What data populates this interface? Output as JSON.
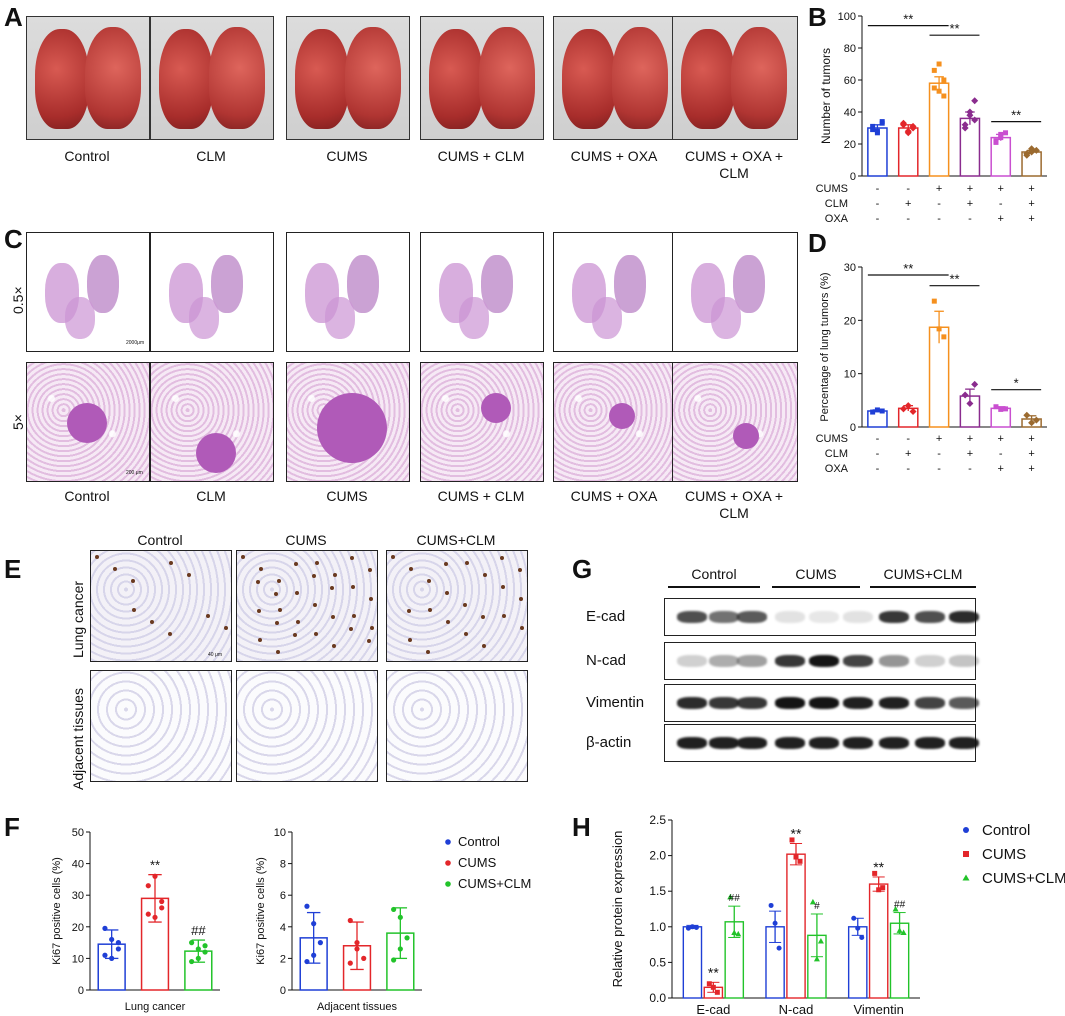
{
  "panel_labels": {
    "A": "A",
    "B": "B",
    "C": "C",
    "D": "D",
    "E": "E",
    "F": "F",
    "G": "G",
    "H": "H"
  },
  "groups": [
    "Control",
    "CLM",
    "CUMS",
    "CUMS + CLM",
    "CUMS + OXA",
    "CUMS + OXA +\nCLM"
  ],
  "section_rows": {
    "top": "0.5×",
    "bottom": "5×"
  },
  "scalebars": {
    "c_top": "2000μm",
    "c_bottom": "200 μm",
    "e": "40 μm"
  },
  "ihc": {
    "cols": [
      "Control",
      "CUMS",
      "CUMS+CLM"
    ],
    "rows": [
      "Lung cancer",
      "Adjacent tissues"
    ]
  },
  "blot": {
    "groups": [
      "Control",
      "CUMS",
      "CUMS+CLM"
    ],
    "proteins": [
      "E-cad",
      "N-cad",
      "Vimentin",
      "β-actin"
    ]
  },
  "treatment_table": {
    "rows": [
      {
        "label": "CUMS",
        "signs": [
          "-",
          "-",
          "+",
          "+",
          "+",
          "+"
        ]
      },
      {
        "label": "CLM",
        "signs": [
          "-",
          "+",
          "-",
          "+",
          "-",
          "+"
        ]
      },
      {
        "label": "OXA",
        "signs": [
          "-",
          "-",
          "-",
          "-",
          "+",
          "+"
        ]
      }
    ]
  },
  "colors": {
    "blue": "#1f3fd6",
    "red": "#e3262a",
    "orange": "#f5901e",
    "purple": "#8a2c8e",
    "magenta": "#c94fd0",
    "brown": "#9b6a2f",
    "green": "#22c32a"
  },
  "chart_data": [
    {
      "id": "B",
      "type": "bar",
      "ylabel": "Number of tumors",
      "ylim": [
        0,
        100
      ],
      "yticks": [
        0,
        20,
        40,
        60,
        80,
        100
      ],
      "values": [
        30,
        30,
        58,
        36,
        24,
        15
      ],
      "errors": [
        2,
        2,
        4,
        4,
        2,
        1
      ],
      "points": [
        [
          31,
          28,
          34,
          29,
          27,
          33
        ],
        [
          32,
          27,
          30,
          33,
          28,
          31
        ],
        [
          66,
          53,
          50,
          55,
          70,
          60
        ],
        [
          30,
          40,
          47,
          32,
          38,
          35
        ],
        [
          22,
          26,
          27,
          21,
          24
        ],
        [
          14,
          17,
          16,
          13,
          15
        ]
      ],
      "colors": [
        "#1f3fd6",
        "#e3262a",
        "#f5901e",
        "#8a2c8e",
        "#c94fd0",
        "#9b6a2f"
      ],
      "sig": [
        {
          "from": 0,
          "to": 2,
          "label": "**",
          "y": 94
        },
        {
          "from": 2,
          "to": 3,
          "label": "**",
          "y": 88
        },
        {
          "from": 4,
          "to": 5,
          "label": "**",
          "y": 34
        }
      ]
    },
    {
      "id": "D",
      "type": "bar",
      "ylabel": "Percentage of lung tumors (%)",
      "ylim": [
        0,
        30
      ],
      "yticks": [
        0,
        10,
        20,
        30
      ],
      "values": [
        3,
        3.5,
        18.7,
        5.8,
        3.5,
        1.5
      ],
      "errors": [
        0.2,
        0.5,
        3,
        1.3,
        0.3,
        0.6
      ],
      "points": [
        [
          2.8,
          3.2,
          3.0
        ],
        [
          3.4,
          4.0,
          2.9
        ],
        [
          23.6,
          18.4,
          16.9
        ],
        [
          6.0,
          4.4,
          8.0
        ],
        [
          3.8,
          3.3,
          3.4
        ],
        [
          2.2,
          0.8,
          1.3
        ]
      ],
      "colors": [
        "#1f3fd6",
        "#e3262a",
        "#f5901e",
        "#8a2c8e",
        "#c94fd0",
        "#9b6a2f"
      ],
      "sig": [
        {
          "from": 0,
          "to": 2,
          "label": "**",
          "y": 28.5
        },
        {
          "from": 2,
          "to": 3,
          "label": "**",
          "y": 26.5
        },
        {
          "from": 4,
          "to": 5,
          "label": "*",
          "y": 7
        }
      ]
    },
    {
      "id": "F1",
      "type": "bar",
      "ylabel": "Ki67 positive cells (%)",
      "xlabel": "Lung cancer",
      "ylim": [
        0,
        50
      ],
      "yticks": [
        0,
        10,
        20,
        30,
        40,
        50
      ],
      "values": [
        14.5,
        29,
        12.3
      ],
      "errors": [
        4.5,
        7.5,
        3.5
      ],
      "points": [
        [
          19.5,
          16,
          13,
          11,
          10,
          15
        ],
        [
          33,
          36,
          28,
          24,
          23,
          26
        ],
        [
          15,
          13,
          12,
          9,
          10,
          14
        ]
      ],
      "colors": [
        "#1f3fd6",
        "#e3262a",
        "#22c32a"
      ],
      "annotations": [
        "",
        "**",
        "##"
      ]
    },
    {
      "id": "F2",
      "type": "bar",
      "ylabel": "Ki67 positive cells (%)",
      "xlabel": "Adjacent tissues",
      "ylim": [
        0,
        10
      ],
      "yticks": [
        0,
        2,
        4,
        6,
        8,
        10
      ],
      "values": [
        3.3,
        2.8,
        3.6
      ],
      "errors": [
        1.6,
        1.5,
        1.6
      ],
      "points": [
        [
          5.3,
          4.2,
          3.0,
          1.8,
          2.2
        ],
        [
          4.4,
          3.0,
          2.0,
          1.7,
          2.6
        ],
        [
          5.1,
          4.6,
          3.3,
          1.9,
          2.6
        ]
      ],
      "colors": [
        "#1f3fd6",
        "#e3262a",
        "#22c32a"
      ],
      "annotations": [
        "",
        "",
        ""
      ],
      "legend": [
        "Control",
        "CUMS",
        "CUMS+CLM"
      ]
    },
    {
      "id": "H",
      "type": "bar",
      "ylabel": "Relative protein expression",
      "ylim": [
        0,
        2.5
      ],
      "yticks": [
        "0.0",
        "0.5",
        "1.0",
        "1.5",
        "2.0",
        "2.5"
      ],
      "categories": [
        "E-cad",
        "N-cad",
        "Vimentin"
      ],
      "series": [
        {
          "name": "Control",
          "color": "#1f3fd6",
          "values": [
            1,
            1,
            1
          ],
          "errors": [
            0.02,
            0.22,
            0.12
          ],
          "points": [
            [
              0.98,
              1.0,
              0.99
            ],
            [
              1.3,
              1.05,
              0.7
            ],
            [
              1.12,
              0.98,
              0.85
            ]
          ]
        },
        {
          "name": "CUMS",
          "color": "#e3262a",
          "values": [
            0.15,
            2.02,
            1.6
          ],
          "errors": [
            0.07,
            0.15,
            0.1
          ],
          "points": [
            [
              0.2,
              0.15,
              0.08
            ],
            [
              2.22,
              1.98,
              1.92
            ],
            [
              1.75,
              1.52,
              1.55
            ]
          ]
        },
        {
          "name": "CUMS+CLM",
          "color": "#22c32a",
          "values": [
            1.07,
            0.88,
            1.05
          ],
          "errors": [
            0.22,
            0.3,
            0.15
          ],
          "points": [
            [
              1.42,
              0.92,
              0.9
            ],
            [
              1.35,
              0.55,
              0.8
            ],
            [
              1.25,
              0.95,
              0.92
            ]
          ]
        }
      ],
      "annotations": [
        [
          "",
          "**",
          "##"
        ],
        [
          "",
          "**",
          "#"
        ],
        [
          "",
          "**",
          "##"
        ]
      ],
      "legend": [
        "Control",
        "CUMS",
        "CUMS+CLM"
      ]
    }
  ]
}
